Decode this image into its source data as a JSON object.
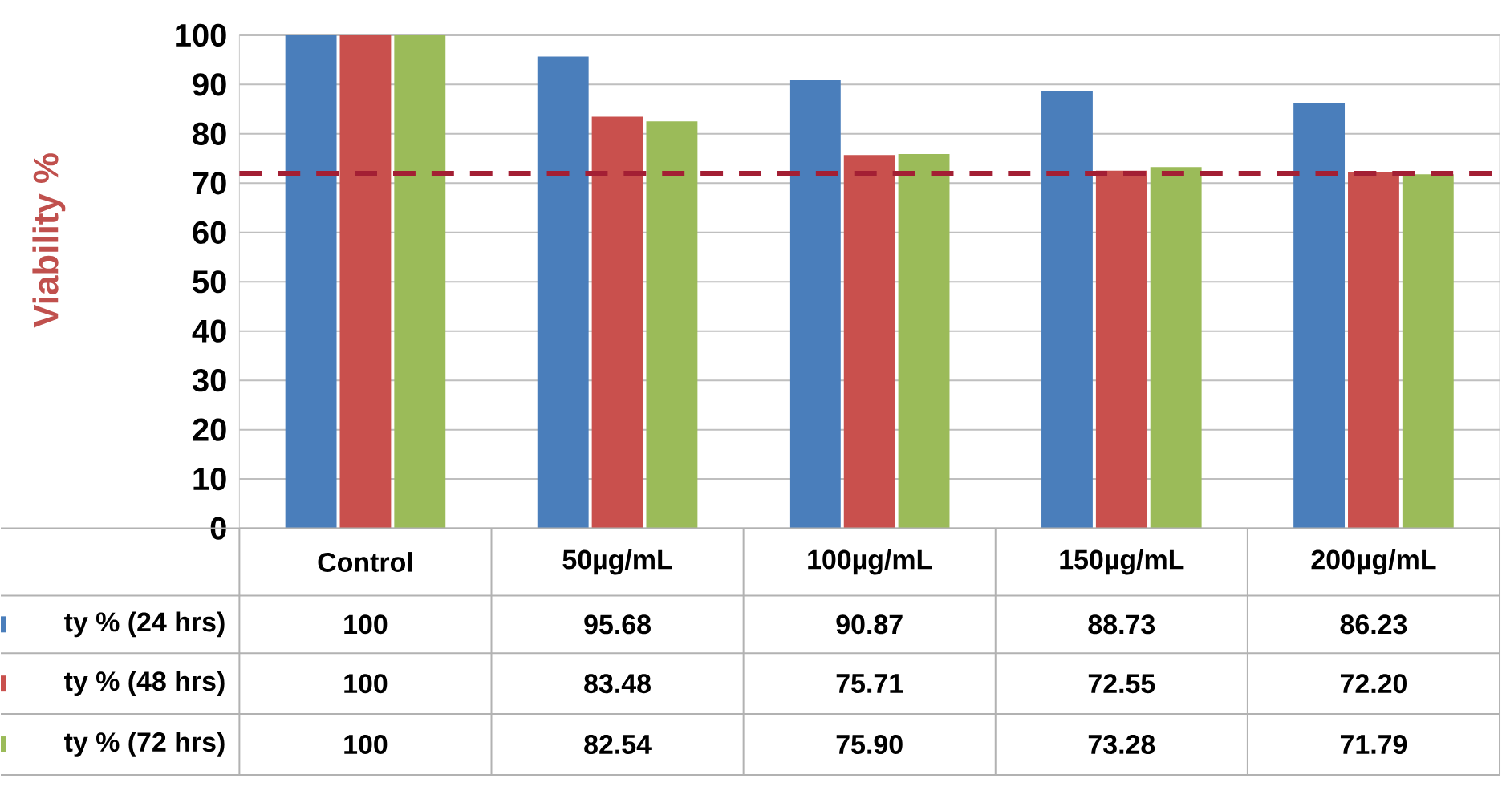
{
  "chart_data": {
    "type": "bar",
    "ylabel": "Viability %",
    "categories": [
      "Control",
      "50µg/mL",
      "100µg/mL",
      "150µg/mL",
      "200µg/mL"
    ],
    "series": [
      {
        "name": "ty % (24 hrs)",
        "color": "#4a7ebb",
        "values": [
          100,
          95.68,
          90.87,
          88.73,
          86.23
        ],
        "value_labels": [
          "100",
          "95.68",
          "90.87",
          "88.73",
          "86.23"
        ]
      },
      {
        "name": "ty % (48 hrs)",
        "color": "#c9504d",
        "values": [
          100,
          83.48,
          75.71,
          72.55,
          72.2
        ],
        "value_labels": [
          "100",
          "83.48",
          "75.71",
          "72.55",
          "72.20"
        ]
      },
      {
        "name": "ty % (72 hrs)",
        "color": "#9bbb59",
        "values": [
          100,
          82.54,
          75.9,
          73.28,
          71.79
        ],
        "value_labels": [
          "100",
          "82.54",
          "75.90",
          "73.28",
          "71.79"
        ]
      }
    ],
    "ylim": [
      0,
      100
    ],
    "yticks": [
      0,
      10,
      20,
      30,
      40,
      50,
      60,
      70,
      80,
      90,
      100
    ],
    "grid": "y",
    "legend": "left",
    "ref_lines": [
      {
        "axis": "y",
        "value": 72,
        "color": "#a31f34",
        "line_style": "dashed"
      }
    ]
  }
}
